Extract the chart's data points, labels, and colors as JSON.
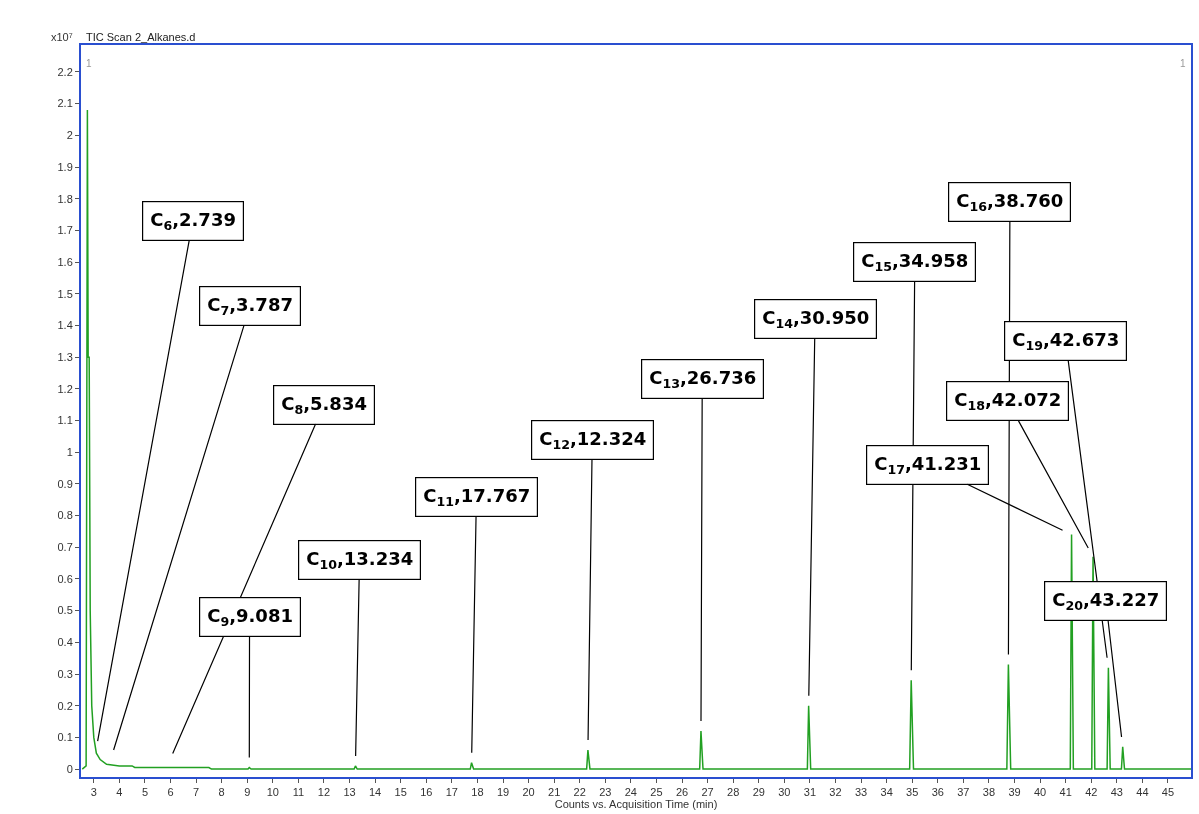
{
  "chart_data": {
    "type": "line",
    "title": "TIC Scan 2_Alkanes.d",
    "xlabel": "Counts vs. Acquisition Time (min)",
    "ylabel": "x10⁷",
    "x": [
      2.55,
      2.7,
      2.75,
      2.78,
      2.82,
      2.86,
      2.92,
      3.0,
      3.1,
      3.25,
      3.5,
      4.0,
      4.5,
      4.6,
      7.5,
      7.6,
      9.03,
      9.08,
      9.15,
      13.18,
      13.23,
      13.3,
      17.72,
      17.77,
      17.85,
      22.27,
      22.32,
      22.4,
      26.69,
      26.74,
      26.82,
      30.9,
      30.95,
      31.03,
      34.9,
      34.96,
      35.05,
      38.7,
      38.76,
      38.85,
      41.18,
      41.23,
      41.3,
      42.02,
      42.07,
      42.14,
      42.62,
      42.67,
      42.74,
      43.18,
      43.23,
      43.3,
      45.9
    ],
    "series": [
      {
        "color": "#22a022",
        "values": [
          0,
          0.01,
          2.08,
          1.3,
          1.3,
          0.5,
          0.2,
          0.1,
          0.05,
          0.03,
          0.015,
          0.01,
          0.01,
          0.005,
          0.005,
          0,
          0,
          0.005,
          0,
          0,
          0.01,
          0,
          0,
          0.02,
          0,
          0,
          0.06,
          0,
          0,
          0.12,
          0,
          0,
          0.2,
          0,
          0,
          0.28,
          0,
          0,
          0.33,
          0,
          0,
          0.74,
          0,
          0,
          0.67,
          0,
          0,
          0.32,
          0,
          0,
          0.07,
          0,
          0
        ]
      }
    ],
    "xlim": [
      2.5,
      45.9
    ],
    "xticks": [
      3,
      4,
      5,
      6,
      7,
      8,
      9,
      10,
      11,
      12,
      13,
      14,
      15,
      16,
      17,
      18,
      19,
      20,
      21,
      22,
      23,
      24,
      25,
      26,
      27,
      28,
      29,
      30,
      31,
      32,
      33,
      34,
      35,
      36,
      37,
      38,
      39,
      40,
      41,
      42,
      43,
      44,
      45
    ],
    "ylim": [
      -0.025,
      2.285
    ],
    "yticks": [
      0,
      0.1,
      0.2,
      0.3,
      0.4,
      0.5,
      0.6,
      0.7,
      0.8,
      0.9,
      1,
      1.1,
      1.2,
      1.3,
      1.4,
      1.5,
      1.6,
      1.7,
      1.8,
      1.9,
      2,
      2.1,
      2.2
    ],
    "legend": false,
    "marker": "none",
    "line_style": "solid",
    "annotations": [
      {
        "text": "C$_{6}$,2.739",
        "x": 3.08,
        "y": 0.057
      },
      {
        "text": "C$_{7}$,3.787",
        "x": 3.66,
        "y": 0.03
      },
      {
        "text": "C$_{8}$,5.834",
        "x": 5.93,
        "y": 0.02
      },
      {
        "text": "C$_{9}$,9.081",
        "x": 9.08,
        "y": 0.005
      },
      {
        "text": "C$_{10}$,13.234",
        "x": 13.23,
        "y": 0.01
      },
      {
        "text": "C$_{11}$,17.767",
        "x": 17.77,
        "y": 0.02
      },
      {
        "text": "C$_{12}$,12.324",
        "x": 22.32,
        "y": 0.06
      },
      {
        "text": "C$_{13}$,26.736",
        "x": 26.74,
        "y": 0.12
      },
      {
        "text": "C$_{14}$,30.950",
        "x": 30.95,
        "y": 0.2
      },
      {
        "text": "C$_{15}$,34.958",
        "x": 34.96,
        "y": 0.28
      },
      {
        "text": "C$_{16}$,38.760",
        "x": 38.76,
        "y": 0.33
      },
      {
        "text": "C$_{17}$,41.231",
        "x": 41.23,
        "y": 0.74
      },
      {
        "text": "C$_{18}$,42.072",
        "x": 42.07,
        "y": 0.67
      },
      {
        "text": "C$_{19}$,42.673",
        "x": 42.67,
        "y": 0.32
      },
      {
        "text": "C$_{20}$,43.227",
        "x": 43.23,
        "y": 0.07
      },
      "1",
      "1"
    ]
  }
}
